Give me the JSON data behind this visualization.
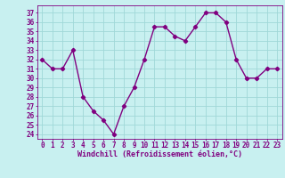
{
  "x": [
    0,
    1,
    2,
    3,
    4,
    5,
    6,
    7,
    8,
    9,
    10,
    11,
    12,
    13,
    14,
    15,
    16,
    17,
    18,
    19,
    20,
    21,
    22,
    23
  ],
  "y": [
    32,
    31,
    31,
    33,
    28,
    26.5,
    25.5,
    24,
    27,
    29,
    32,
    35.5,
    35.5,
    34.5,
    34,
    35.5,
    37,
    37,
    36,
    32,
    30,
    30,
    31,
    31
  ],
  "line_color": "#800080",
  "marker": "D",
  "marker_size": 2.2,
  "bg_color": "#c8f0f0",
  "grid_color": "#a0d8d8",
  "xlabel": "Windchill (Refroidissement éolien,°C)",
  "xlim": [
    -0.5,
    23.5
  ],
  "ylim": [
    23.5,
    37.8
  ],
  "yticks": [
    24,
    25,
    26,
    27,
    28,
    29,
    30,
    31,
    32,
    33,
    34,
    35,
    36,
    37
  ],
  "xticks": [
    0,
    1,
    2,
    3,
    4,
    5,
    6,
    7,
    8,
    9,
    10,
    11,
    12,
    13,
    14,
    15,
    16,
    17,
    18,
    19,
    20,
    21,
    22,
    23
  ],
  "line_width": 1.0,
  "axis_color": "#800080",
  "tick_label_color": "#800080",
  "xlabel_color": "#800080",
  "xlabel_fontsize": 6.0,
  "tick_fontsize": 5.5
}
